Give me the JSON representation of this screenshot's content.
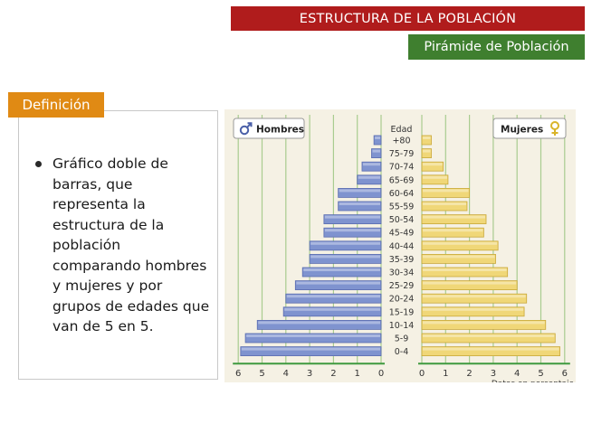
{
  "header": {
    "title": "ESTRUCTURA DE LA POBLACIÓN",
    "subtitle": "Pirámide de Población"
  },
  "definition": {
    "tab_label": "Definición",
    "text": "Gráfico doble de barras, que representa la estructura de la población comparando hombres y mujeres y por grupos de edades que van de 5 en 5."
  },
  "colors": {
    "title_bg": "#b01c1c",
    "subtitle_bg": "#3f7f2f",
    "tab_bg": "#e08a14",
    "chart_bg": "#f5f1e4",
    "grid_green": "#a9cc8f",
    "men_bar": "#7f93cf",
    "women_bar": "#f0d778",
    "axis_green": "#3f9a3f"
  },
  "chart_data": {
    "type": "bar",
    "orientation": "horizontal-population-pyramid",
    "category_header": "Edad",
    "categories": [
      "+80",
      "75-79",
      "70-74",
      "65-69",
      "60-64",
      "55-59",
      "50-54",
      "45-49",
      "40-44",
      "35-39",
      "30-34",
      "25-29",
      "20-24",
      "15-19",
      "10-14",
      "5-9",
      "0-4"
    ],
    "series": [
      {
        "name": "Hombres",
        "icon": "male-symbol-icon",
        "side": "left",
        "values": [
          0.3,
          0.4,
          0.8,
          1.0,
          1.8,
          1.8,
          2.4,
          2.4,
          3.0,
          3.0,
          3.3,
          3.6,
          4.0,
          4.1,
          5.2,
          5.7,
          5.9
        ]
      },
      {
        "name": "Mujeres",
        "icon": "female-symbol-icon",
        "side": "right",
        "values": [
          0.4,
          0.4,
          0.9,
          1.1,
          2.0,
          1.9,
          2.7,
          2.6,
          3.2,
          3.1,
          3.6,
          4.0,
          4.4,
          4.3,
          5.2,
          5.6,
          5.8
        ]
      }
    ],
    "xlim": [
      0,
      6
    ],
    "xticks": [
      "0",
      "1",
      "2",
      "3",
      "4",
      "5",
      "6"
    ],
    "xlabel": "Datos en porcentaje",
    "grid": true
  }
}
